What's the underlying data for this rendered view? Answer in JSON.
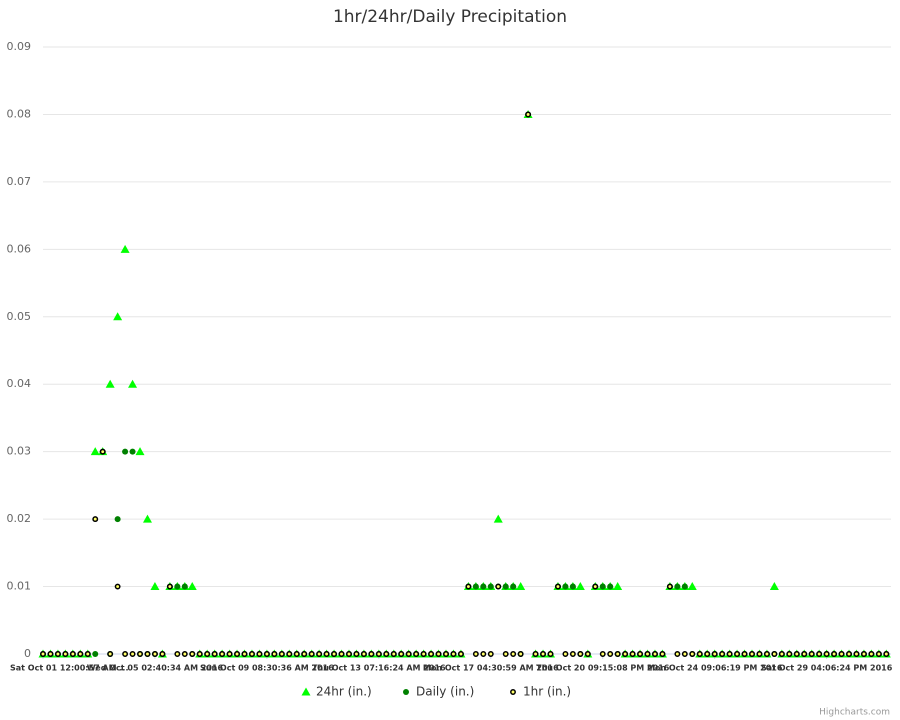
{
  "chart_data": {
    "type": "scatter",
    "title": "1hr/24hr/Daily Precipitation",
    "credits": "Highcharts.com",
    "x": [
      0,
      8,
      16,
      24,
      32,
      40,
      48,
      56,
      64,
      72,
      80,
      88,
      96,
      104,
      112,
      120,
      128,
      136,
      144,
      152,
      160,
      168,
      176,
      184,
      192,
      200,
      208,
      216,
      224,
      232,
      240,
      248,
      256,
      264,
      272,
      280,
      288,
      296,
      304,
      312,
      320,
      328,
      336,
      344,
      352,
      360,
      368,
      376,
      384,
      392,
      400,
      408,
      416,
      424,
      432,
      440,
      448,
      456,
      464,
      472,
      480,
      488,
      496,
      504,
      512,
      520,
      528,
      536,
      544,
      552,
      560,
      568,
      576,
      584,
      592,
      600,
      608,
      616,
      624,
      632,
      640,
      648,
      656,
      664,
      672,
      680,
      688,
      696,
      704,
      712,
      720,
      728,
      736,
      744,
      752,
      760,
      768,
      776,
      784,
      792,
      800,
      808,
      816,
      824,
      832,
      840,
      848,
      856,
      864,
      872,
      880,
      888,
      896,
      904
    ],
    "series": [
      {
        "name": "24hr (in.)",
        "color": "#00ff00",
        "marker": "triangle",
        "values": [
          0,
          0,
          0,
          0,
          0,
          0,
          0,
          0.03,
          0.03,
          0.04,
          0.05,
          0.06,
          0.04,
          0.03,
          0.02,
          0.01,
          0,
          0.01,
          0.01,
          0.01,
          0.01,
          0,
          0,
          0,
          0,
          0,
          0,
          0,
          0,
          0,
          0,
          0,
          0,
          0,
          0,
          0,
          0,
          0,
          0,
          0,
          0,
          0,
          0,
          0,
          0,
          0,
          0,
          0,
          0,
          0,
          0,
          0,
          0,
          0,
          0,
          0,
          0,
          0.01,
          0.01,
          0.01,
          0.01,
          0.02,
          0.01,
          0.01,
          0.01,
          0.08,
          0,
          0,
          0,
          0.01,
          0.01,
          0.01,
          0.01,
          0,
          0.01,
          0.01,
          0.01,
          0.01,
          0,
          0,
          0,
          0,
          0,
          0,
          0.01,
          0.01,
          0.01,
          0.01,
          0,
          0,
          0,
          0,
          0,
          0,
          0,
          0,
          0,
          0,
          0.01,
          0,
          0,
          0,
          0,
          0,
          0,
          0,
          0,
          0,
          0,
          0,
          0,
          0,
          0,
          0
        ]
      },
      {
        "name": "Daily (in.)",
        "color": "#008000",
        "marker": "circle",
        "values": [
          0,
          0,
          0,
          0,
          0,
          0,
          0,
          0,
          0.03,
          0,
          0.02,
          0.03,
          0.03,
          0,
          0,
          0,
          0,
          0.01,
          0.01,
          0.01,
          0,
          0,
          0,
          0,
          0,
          0,
          0,
          0,
          0,
          0,
          0,
          0,
          0,
          0,
          0,
          0,
          0,
          0,
          0,
          0,
          0,
          0,
          0,
          0,
          0,
          0,
          0,
          0,
          0,
          0,
          0,
          0,
          0,
          0,
          0,
          0,
          0,
          0.01,
          0.01,
          0.01,
          0.01,
          0.01,
          0.01,
          0.01,
          0,
          0.08,
          0,
          0,
          0,
          0.01,
          0.01,
          0.01,
          0,
          0,
          0.01,
          0.01,
          0.01,
          0,
          0,
          0,
          0,
          0,
          0,
          0,
          0.01,
          0.01,
          0.01,
          0,
          0,
          0,
          0,
          0,
          0,
          0,
          0,
          0,
          0,
          0,
          0,
          0,
          0,
          0,
          0,
          0,
          0,
          0,
          0,
          0,
          0,
          0,
          0,
          0,
          0,
          0
        ]
      },
      {
        "name": "1hr (in.)",
        "color": "#ffff66",
        "lineColor": "#000000",
        "marker": "circle",
        "values": [
          0,
          0,
          0,
          0,
          0,
          0,
          0,
          0.02,
          0.03,
          0,
          0.01,
          0,
          0,
          0,
          0,
          0,
          0,
          0.01,
          0,
          0,
          0,
          0,
          0,
          0,
          0,
          0,
          0,
          0,
          0,
          0,
          0,
          0,
          0,
          0,
          0,
          0,
          0,
          0,
          0,
          0,
          0,
          0,
          0,
          0,
          0,
          0,
          0,
          0,
          0,
          0,
          0,
          0,
          0,
          0,
          0,
          0,
          0,
          0.01,
          0,
          0,
          0,
          0.01,
          0,
          0,
          0,
          0.08,
          0,
          0,
          0,
          0.01,
          0,
          0,
          0,
          0,
          0.01,
          0,
          0,
          0,
          0,
          0,
          0,
          0,
          0,
          0,
          0.01,
          0,
          0,
          0,
          0,
          0,
          0,
          0,
          0,
          0,
          0,
          0,
          0,
          0,
          0,
          0,
          0,
          0,
          0,
          0,
          0,
          0,
          0,
          0,
          0,
          0,
          0,
          0,
          0,
          0
        ]
      }
    ],
    "xlim": [
      0,
      909
    ],
    "xticks": [
      {
        "value": 0,
        "label": "Sat Oct 01 12:00:57 AM ..."
      },
      {
        "value": 120,
        "label": "Wed Oct 05 02:40:34 AM 2016"
      },
      {
        "value": 240,
        "label": "Sun Oct 09 08:30:36 AM 2016"
      },
      {
        "value": 360,
        "label": "Thu Oct 13 07:16:24 AM 2016"
      },
      {
        "value": 480,
        "label": "Mon Oct 17 04:30:59 AM 2016"
      },
      {
        "value": 600,
        "label": "Thu Oct 20 09:15:08 PM 2016"
      },
      {
        "value": 720,
        "label": "Mon Oct 24 09:06:19 PM 2016"
      },
      {
        "value": 840,
        "label": "Sat Oct 29 04:06:24 PM 2016"
      }
    ],
    "ylim": [
      0,
      0.09
    ],
    "yticks": [
      0,
      0.01,
      0.02,
      0.03,
      0.04,
      0.05,
      0.06,
      0.07,
      0.08,
      0.09
    ],
    "grid": true,
    "legend": "bottom"
  }
}
